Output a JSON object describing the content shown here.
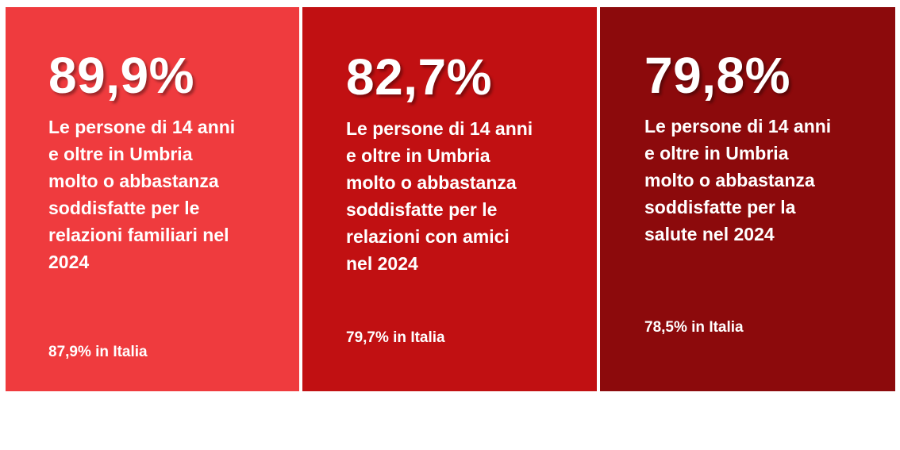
{
  "cards": [
    {
      "value": "89,9%",
      "description": "Le persone di 14 anni\ne oltre in Umbria\nmolto o abbastanza\nsoddisfatte per le\nrelazioni familiari nel\n2024",
      "italy": "87,9% in Italia",
      "color": "#ef3b3e"
    },
    {
      "value": "82,7%",
      "description": "Le persone di 14 anni\ne oltre in Umbria\nmolto o abbastanza\nsoddisfatte per le\nrelazioni con amici\nnel 2024",
      "italy": "79,7% in Italia",
      "color": "#c11012"
    },
    {
      "value": "79,8%",
      "description": "Le persone di 14 anni\ne oltre in Umbria\nmolto o abbastanza\nsoddisfatte per la\nsalute nel 2024",
      "italy": "78,5% in Italia",
      "color": "#8c0a0c"
    }
  ]
}
